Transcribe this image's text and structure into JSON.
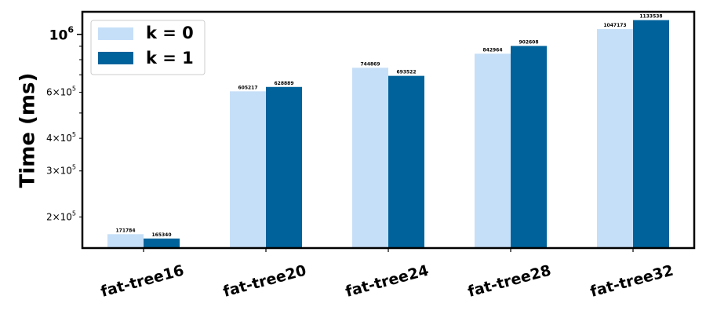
{
  "chart_data": {
    "type": "bar",
    "categories": [
      "fat-tree16",
      "fat-tree20",
      "fat-tree24",
      "fat-tree28",
      "fat-tree32"
    ],
    "series": [
      {
        "name": "k = 0",
        "color": "#c6dff8",
        "values": [
          171784,
          605217,
          744869,
          842964,
          1047173
        ]
      },
      {
        "name": "k = 1",
        "color": "#00629b",
        "values": [
          165340,
          628889,
          693522,
          902608,
          1133538
        ]
      }
    ],
    "ylabel": "Time (ms)",
    "xlabel": "",
    "yscale": "log",
    "ylim": [
      152000,
      1220000
    ],
    "yticks": [
      {
        "value": 200000,
        "base": "2",
        "exp": "5"
      },
      {
        "value": 300000,
        "base": "3",
        "exp": "5"
      },
      {
        "value": 400000,
        "base": "4",
        "exp": "5"
      },
      {
        "value": 600000,
        "base": "6",
        "exp": "5"
      }
    ],
    "ytick_major": {
      "value": 1000000,
      "base": "10",
      "exp": "6"
    },
    "yminor_ticks": [
      500000,
      700000,
      800000,
      900000
    ],
    "legend_position": "top-left",
    "grid": false
  }
}
